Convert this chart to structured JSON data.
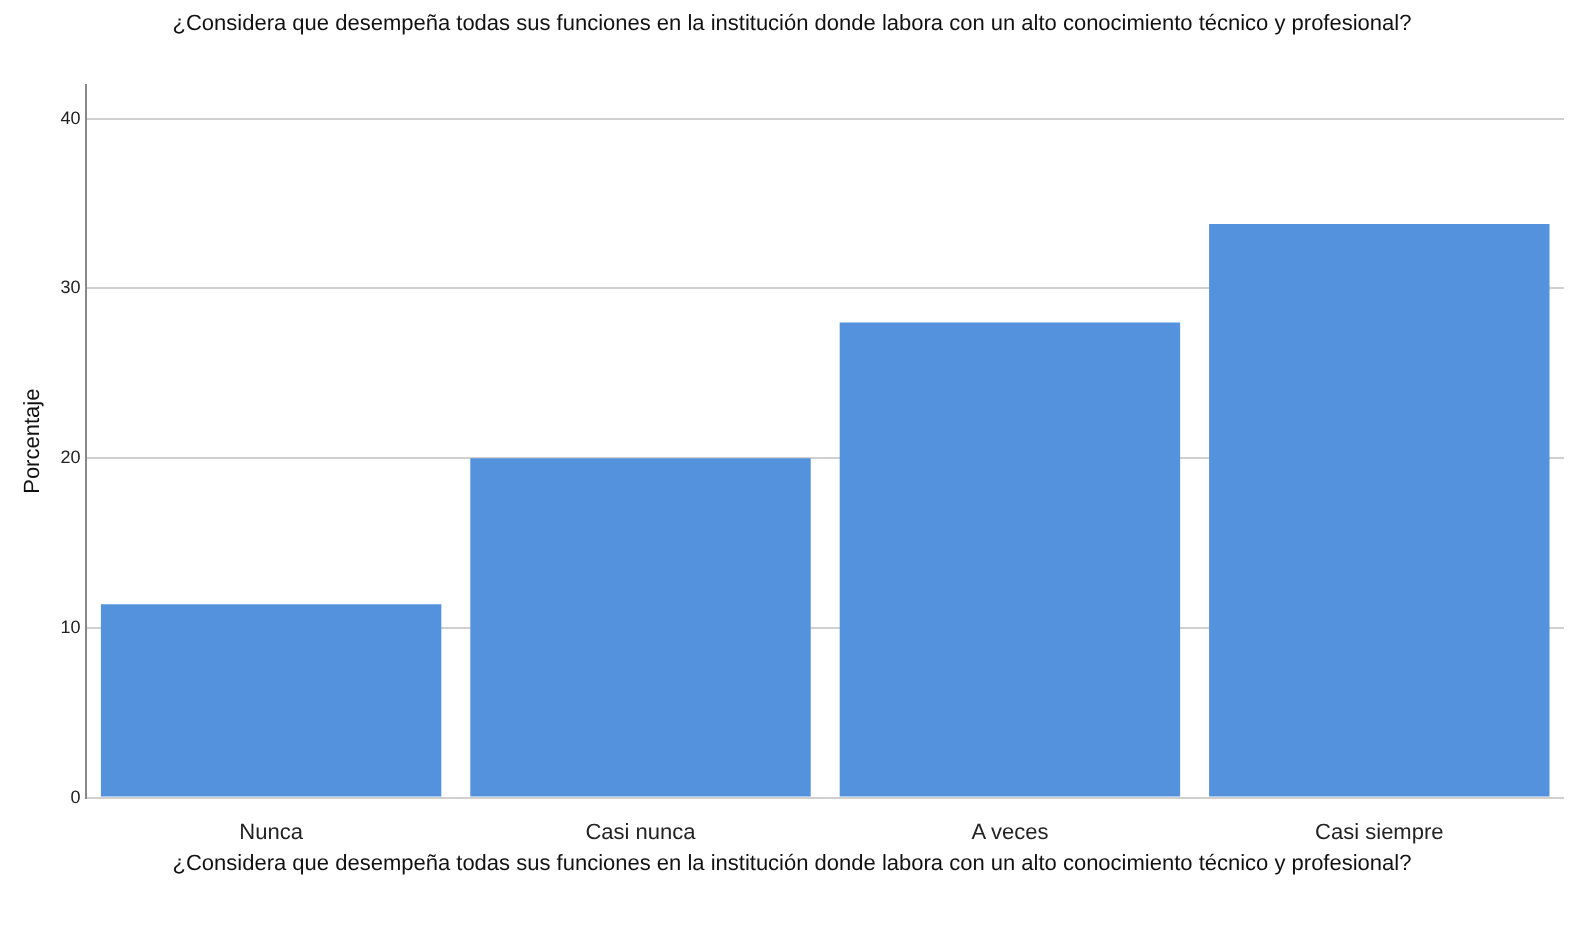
{
  "chart_data": {
    "type": "bar",
    "title": "¿Considera que desempeña todas sus funciones en la institución donde labora con un alto conocimiento técnico y profesional?",
    "xlabel": "¿Considera que desempeña todas sus funciones en la institución donde labora con un alto conocimiento técnico y profesional?",
    "ylabel": "Porcentaje",
    "categories": [
      "Nunca",
      "Casi nunca",
      "A veces",
      "Casi siempre"
    ],
    "values": [
      11.4,
      20.0,
      28.0,
      33.8
    ],
    "color": "#5592dd",
    "ylim": [
      0,
      42
    ],
    "yticks": [
      0,
      10,
      20,
      30,
      40
    ],
    "grid": "y",
    "legend": false
  }
}
